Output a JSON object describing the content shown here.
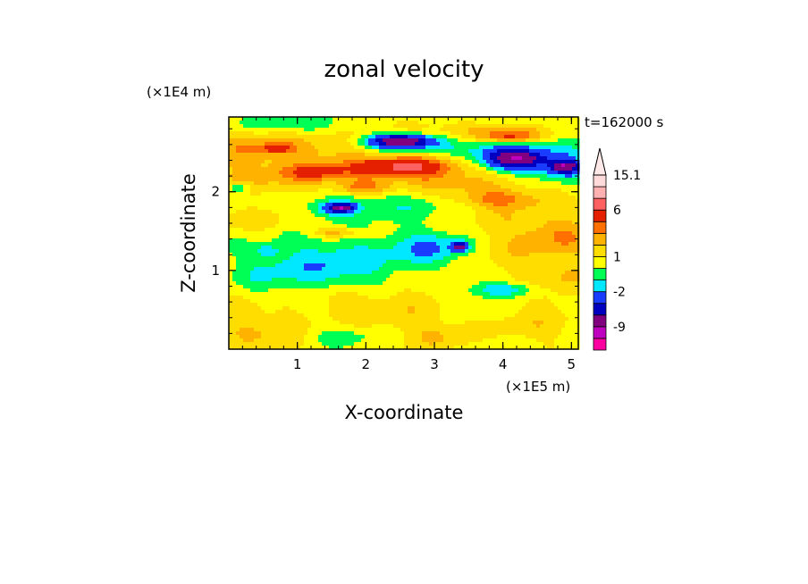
{
  "chart_data": {
    "type": "heatmap",
    "title": "zonal velocity",
    "xlabel": "X-coordinate",
    "ylabel": "Z-coordinate",
    "x_unit": "(×1E5 m)",
    "y_unit": "(×1E4 m)",
    "time_label": "t=162000 s",
    "xlim": [
      0,
      5.1
    ],
    "ylim": [
      0,
      2.95
    ],
    "x_ticks": [
      "1",
      "2",
      "3",
      "4",
      "5"
    ],
    "y_ticks": [
      "1",
      "2"
    ],
    "x_tick_values": [
      1,
      2,
      3,
      4,
      5
    ],
    "y_tick_values": [
      1,
      2
    ],
    "colorbar": {
      "labels": [
        "15.1",
        "6",
        "1",
        "-2",
        "-9"
      ],
      "label_values": [
        15.1,
        6,
        1,
        -2,
        -9
      ],
      "levels": [
        -15,
        -12,
        -9,
        -6,
        -4,
        -2,
        -1,
        0,
        1,
        2,
        3,
        4,
        6,
        9,
        12,
        15.1
      ],
      "colors": [
        "#ff00a0",
        "#c000c0",
        "#800080",
        "#0000c0",
        "#1a3cff",
        "#00e8ff",
        "#00ff55",
        "#ffff00",
        "#ffdd00",
        "#ffb300",
        "#ff7000",
        "#e52000",
        "#ff6060",
        "#ffb0b0",
        "#ffdada"
      ],
      "extend_color": "#ffe8e8"
    },
    "field": {
      "background_level": 0.3,
      "features": [
        {
          "x": 0.15,
          "z": 2.05,
          "sx": 0.12,
          "sz": 0.05,
          "v": -2.5
        },
        {
          "x": 0.55,
          "z": 1.25,
          "sx": 0.12,
          "sz": 0.05,
          "v": -1.8
        },
        {
          "x": 1.55,
          "z": 1.78,
          "sx": 0.2,
          "sz": 0.06,
          "v": -3.0
        },
        {
          "x": 1.65,
          "z": 1.8,
          "sx": 0.12,
          "sz": 0.035,
          "v": -6.5
        },
        {
          "x": 2.55,
          "z": 2.62,
          "sx": 0.42,
          "sz": 0.09,
          "v": -3.2
        },
        {
          "x": 2.5,
          "z": 2.64,
          "sx": 0.27,
          "sz": 0.05,
          "v": -6.8
        },
        {
          "x": 3.0,
          "z": 1.28,
          "sx": 0.45,
          "sz": 0.16,
          "v": -2.6
        },
        {
          "x": 3.37,
          "z": 1.3,
          "sx": 0.08,
          "sz": 0.04,
          "v": -7.0
        },
        {
          "x": 4.05,
          "z": 0.75,
          "sx": 0.35,
          "sz": 0.06,
          "v": -2.4
        },
        {
          "x": 4.25,
          "z": 2.35,
          "sx": 0.62,
          "sz": 0.22,
          "v": -2.6
        },
        {
          "x": 4.18,
          "z": 2.42,
          "sx": 0.27,
          "sz": 0.08,
          "v": -7.2
        },
        {
          "x": 4.9,
          "z": 2.32,
          "sx": 0.13,
          "sz": 0.05,
          "v": -6.5
        },
        {
          "x": 4.9,
          "z": 2.3,
          "sx": 0.3,
          "sz": 0.12,
          "v": -2.4
        },
        {
          "x": 0.55,
          "z": 2.15,
          "sx": 1.0,
          "sz": 0.15,
          "v": 1.6
        },
        {
          "x": 0.25,
          "z": 1.65,
          "sx": 0.5,
          "sz": 0.12,
          "v": 1.3
        },
        {
          "x": 0.2,
          "z": 2.55,
          "sx": 0.4,
          "sz": 0.2,
          "v": 1.6
        },
        {
          "x": 1.1,
          "z": 2.55,
          "sx": 0.7,
          "sz": 0.15,
          "v": 1.9
        },
        {
          "x": 1.25,
          "z": 2.25,
          "sx": 0.35,
          "sz": 0.07,
          "v": 2.4
        },
        {
          "x": 2.5,
          "z": 2.3,
          "sx": 0.75,
          "sz": 0.14,
          "v": 2.6
        },
        {
          "x": 2.6,
          "z": 2.32,
          "sx": 0.45,
          "sz": 0.07,
          "v": 3.4
        },
        {
          "x": 1.95,
          "z": 2.05,
          "sx": 0.25,
          "sz": 0.06,
          "v": 2.4
        },
        {
          "x": 1.55,
          "z": 1.48,
          "sx": 0.25,
          "sz": 0.05,
          "v": 2.3
        },
        {
          "x": 0.7,
          "z": 2.55,
          "sx": 0.15,
          "sz": 0.04,
          "v": 2.5
        },
        {
          "x": 3.8,
          "z": 2.1,
          "sx": 0.9,
          "sz": 0.18,
          "v": 1.8
        },
        {
          "x": 3.9,
          "z": 1.9,
          "sx": 0.4,
          "sz": 0.08,
          "v": 2.1
        },
        {
          "x": 4.1,
          "z": 2.72,
          "sx": 0.5,
          "sz": 0.1,
          "v": 1.7
        },
        {
          "x": 4.1,
          "z": 2.7,
          "sx": 0.25,
          "sz": 0.06,
          "v": 2.6
        },
        {
          "x": 3.1,
          "z": 2.78,
          "sx": 0.8,
          "sz": 0.08,
          "v": 1.3
        },
        {
          "x": 4.2,
          "z": 1.4,
          "sx": 0.7,
          "sz": 0.5,
          "v": 1.5
        },
        {
          "x": 4.9,
          "z": 1.45,
          "sx": 0.35,
          "sz": 0.15,
          "v": 1.8
        },
        {
          "x": 4.95,
          "z": 0.9,
          "sx": 0.3,
          "sz": 0.2,
          "v": 1.2
        },
        {
          "x": 0.3,
          "z": 0.35,
          "sx": 0.45,
          "sz": 0.28,
          "v": 1.4
        },
        {
          "x": 0.8,
          "z": 0.12,
          "sx": 0.4,
          "sz": 0.12,
          "v": 1.2
        },
        {
          "x": 2.6,
          "z": 0.5,
          "sx": 0.8,
          "sz": 0.38,
          "v": 1.5
        },
        {
          "x": 1.6,
          "z": 0.65,
          "sx": 0.4,
          "sz": 0.15,
          "v": 1.2
        },
        {
          "x": 3.2,
          "z": 0.15,
          "sx": 0.5,
          "sz": 0.12,
          "v": 1.2
        },
        {
          "x": 4.3,
          "z": 0.3,
          "sx": 0.5,
          "sz": 0.25,
          "v": 1.4
        },
        {
          "x": 1.3,
          "z": 1.05,
          "sx": 0.5,
          "sz": 0.25,
          "v": -1.6
        },
        {
          "x": 2.0,
          "z": 1.0,
          "sx": 0.6,
          "sz": 0.25,
          "v": -1.4
        },
        {
          "x": 0.5,
          "z": 0.95,
          "sx": 0.25,
          "sz": 0.18,
          "v": -1.2
        },
        {
          "x": 3.7,
          "z": 0.6,
          "sx": 0.5,
          "sz": 0.25,
          "v": -1.3
        },
        {
          "x": 1.8,
          "z": 0.15,
          "sx": 0.7,
          "sz": 0.1,
          "v": -1.2
        },
        {
          "x": 3.9,
          "z": 0.1,
          "sx": 0.35,
          "sz": 0.08,
          "v": -1.2
        },
        {
          "x": 2.4,
          "z": 1.85,
          "sx": 0.9,
          "sz": 0.12,
          "v": -1.4
        },
        {
          "x": 0.9,
          "z": 2.85,
          "sx": 0.6,
          "sz": 0.08,
          "v": -1.3
        },
        {
          "x": 3.7,
          "z": 2.55,
          "sx": 0.5,
          "sz": 0.08,
          "v": -1.1
        }
      ]
    }
  }
}
